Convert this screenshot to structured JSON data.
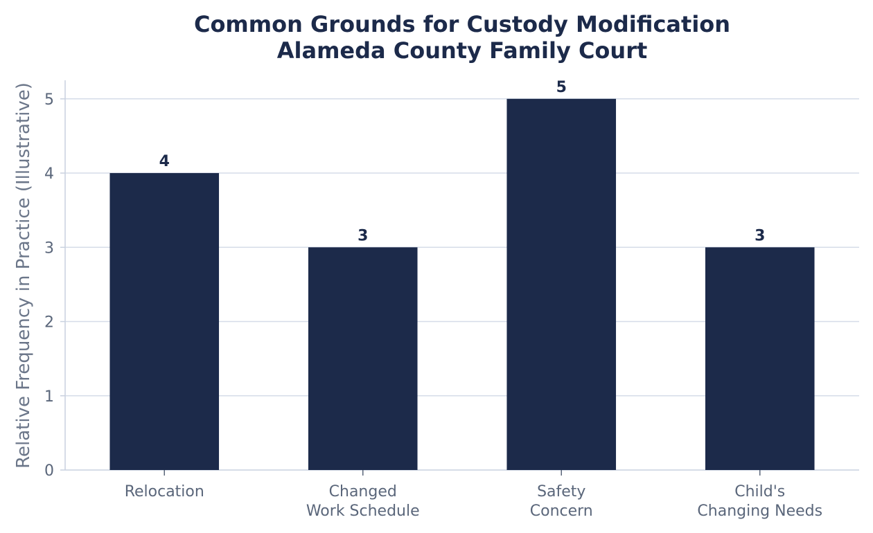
{
  "chart_data": {
    "type": "bar",
    "title_lines": [
      "Common Grounds for Custody Modification",
      "Alameda County Family Court"
    ],
    "xlabel": "",
    "ylabel": "Relative Frequency in Practice (Illustrative)",
    "categories": [
      [
        "Relocation"
      ],
      [
        "Changed",
        "Work Schedule"
      ],
      [
        "Safety",
        "Concern"
      ],
      [
        "Child's",
        "Changing Needs"
      ]
    ],
    "values": [
      4,
      3,
      5,
      3
    ],
    "value_labels": [
      "4",
      "3",
      "5",
      "3"
    ],
    "ylim": [
      0,
      5.25
    ],
    "yticks": [
      0,
      1,
      2,
      3,
      4,
      5
    ],
    "grid": "horizontal",
    "bar_color": "#1c2a4a",
    "grid_color": "#d5dce8",
    "axis_color": "#c9d1df"
  }
}
